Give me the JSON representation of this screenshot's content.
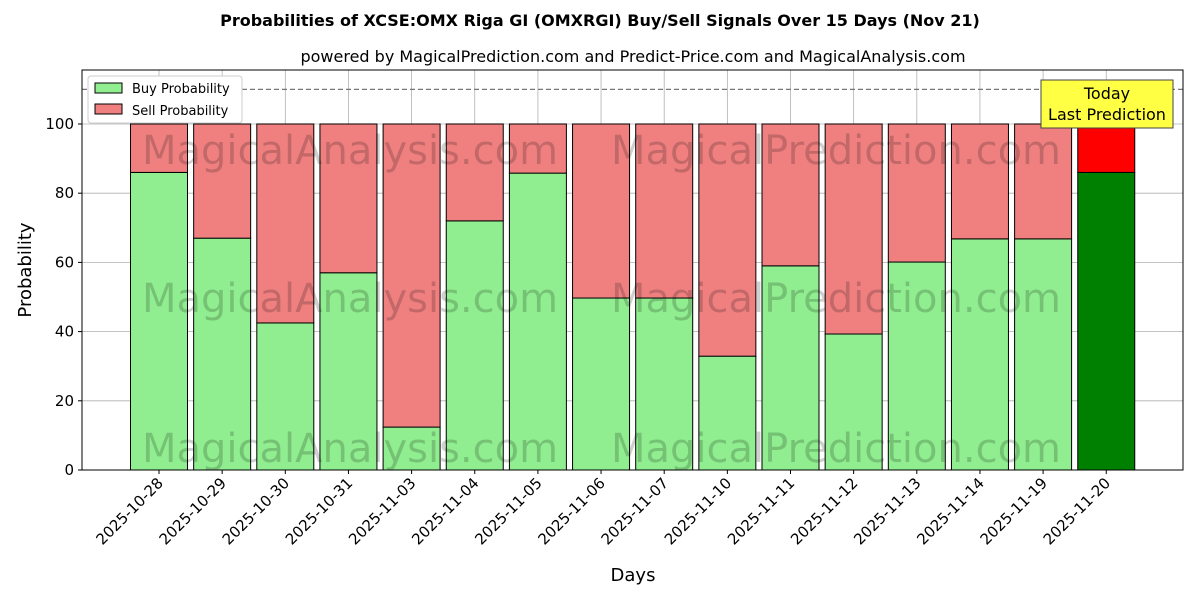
{
  "chart_data": {
    "type": "bar",
    "stacked": true,
    "title": "Probabilities of XCSE:OMX Riga GI (OMXRGI) Buy/Sell Signals Over 15 Days (Nov 21)",
    "subtitle": "powered by MagicalPrediction.com and Predict-Price.com and MagicalAnalysis.com",
    "xlabel": "Days",
    "ylabel": "Probability",
    "ylim": [
      0,
      115.6
    ],
    "yticks": [
      0,
      20,
      40,
      60,
      80,
      100
    ],
    "grid": true,
    "legend_placement": "top-left",
    "reference_line": 110,
    "categories": [
      "2025-10-28",
      "2025-10-29",
      "2025-10-30",
      "2025-10-31",
      "2025-11-03",
      "2025-11-04",
      "2025-11-05",
      "2025-11-06",
      "2025-11-07",
      "2025-11-10",
      "2025-11-11",
      "2025-11-12",
      "2025-11-13",
      "2025-11-14",
      "2025-11-19",
      "2025-11-20"
    ],
    "series": [
      {
        "name": "Buy Probability",
        "color": "#90ee90",
        "values": [
          86,
          67,
          42.5,
          57,
          12.4,
          72,
          85.8,
          49.7,
          49.7,
          32.9,
          59,
          39.3,
          60.1,
          66.8,
          66.8,
          86
        ]
      },
      {
        "name": "Sell Probability",
        "color": "#f08080",
        "values": [
          14,
          33,
          57.5,
          43,
          87.6,
          28,
          14.2,
          50.3,
          50.3,
          67.1,
          41,
          60.7,
          39.9,
          33.2,
          33.2,
          14
        ]
      }
    ],
    "highlight": {
      "index": 15,
      "buy_color": "#008000",
      "sell_color": "#ff0000"
    },
    "annotation": {
      "line1": "Today",
      "line2": "Last Prediction"
    },
    "watermarks": [
      "MagicalAnalysis.com",
      "MagicalPrediction.com"
    ]
  }
}
